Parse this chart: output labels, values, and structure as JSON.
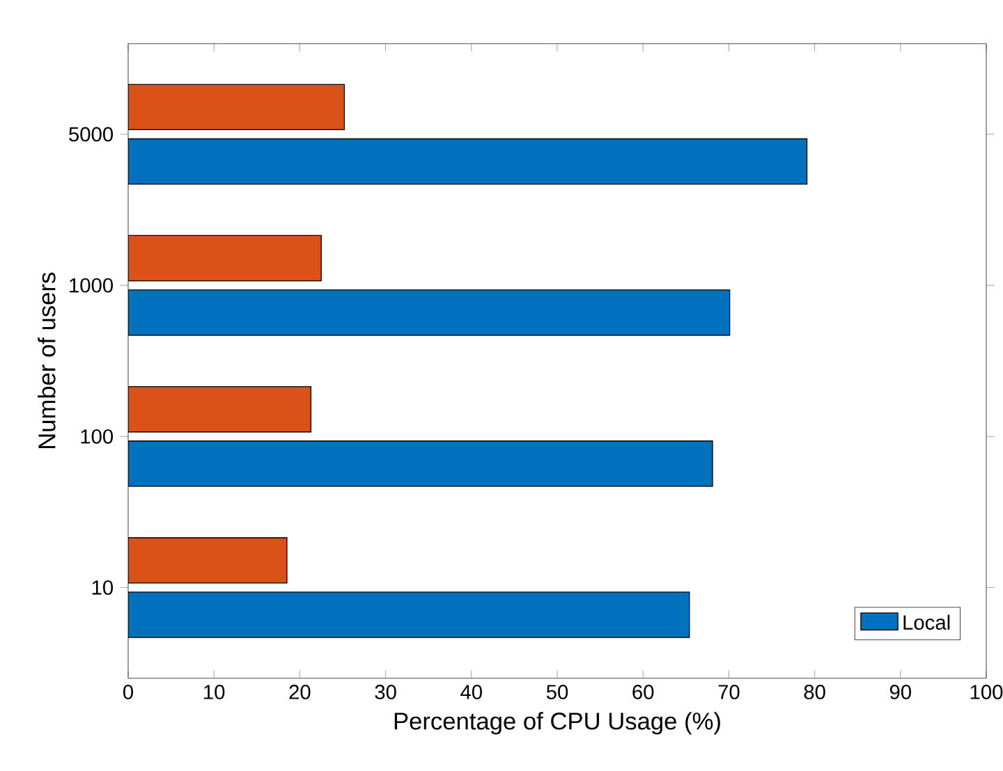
{
  "chart_data": {
    "type": "bar",
    "orientation": "horizontal",
    "xlabel": "Percentage of CPU Usage (%)",
    "ylabel": "Number of users",
    "categories": [
      "5000",
      "1000",
      "100",
      "10"
    ],
    "series": [
      {
        "name": "Local",
        "color": "#0072bd",
        "values": [
          79.1,
          70.1,
          68.1,
          65.4
        ]
      },
      {
        "color": "#d95319",
        "values": [
          25.2,
          22.5,
          21.3,
          18.5
        ]
      }
    ],
    "xlim": [
      0,
      100
    ],
    "xticks": [
      0,
      10,
      20,
      30,
      40,
      50,
      60,
      70,
      80,
      90,
      100
    ],
    "legend": "bottom right",
    "grid": false
  }
}
